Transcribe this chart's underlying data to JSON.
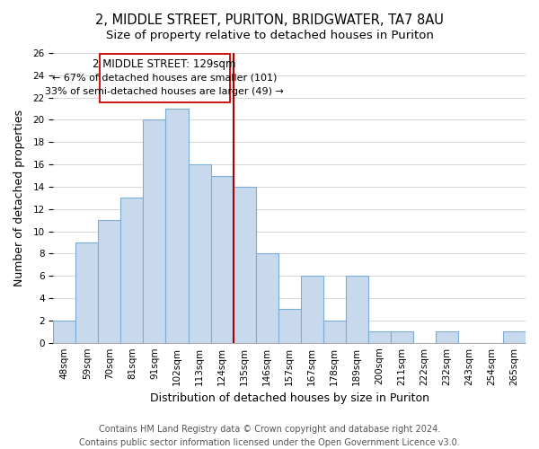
{
  "title": "2, MIDDLE STREET, PURITON, BRIDGWATER, TA7 8AU",
  "subtitle": "Size of property relative to detached houses in Puriton",
  "xlabel": "Distribution of detached houses by size in Puriton",
  "ylabel": "Number of detached properties",
  "categories": [
    "48sqm",
    "59sqm",
    "70sqm",
    "81sqm",
    "91sqm",
    "102sqm",
    "113sqm",
    "124sqm",
    "135sqm",
    "146sqm",
    "157sqm",
    "167sqm",
    "178sqm",
    "189sqm",
    "200sqm",
    "211sqm",
    "222sqm",
    "232sqm",
    "243sqm",
    "254sqm",
    "265sqm"
  ],
  "values": [
    2,
    9,
    11,
    13,
    20,
    21,
    16,
    15,
    14,
    8,
    3,
    6,
    2,
    6,
    1,
    1,
    0,
    1,
    0,
    0,
    1
  ],
  "bar_color": "#c8d9ed",
  "bar_edge_color": "#7aadd4",
  "reference_line_label": "2 MIDDLE STREET: 129sqm",
  "annotation_line1": "← 67% of detached houses are smaller (101)",
  "annotation_line2": "33% of semi-detached houses are larger (49) →",
  "ylim": [
    0,
    26
  ],
  "yticks": [
    0,
    2,
    4,
    6,
    8,
    10,
    12,
    14,
    16,
    18,
    20,
    22,
    24,
    26
  ],
  "vline_color": "#aa0000",
  "box_edge_color": "#cc0000",
  "footer_line1": "Contains HM Land Registry data © Crown copyright and database right 2024.",
  "footer_line2": "Contains public sector information licensed under the Open Government Licence v3.0.",
  "title_fontsize": 10.5,
  "subtitle_fontsize": 9.5,
  "axis_label_fontsize": 9,
  "tick_fontsize": 7.5,
  "annotation_fontsize": 8.5,
  "footer_fontsize": 7
}
